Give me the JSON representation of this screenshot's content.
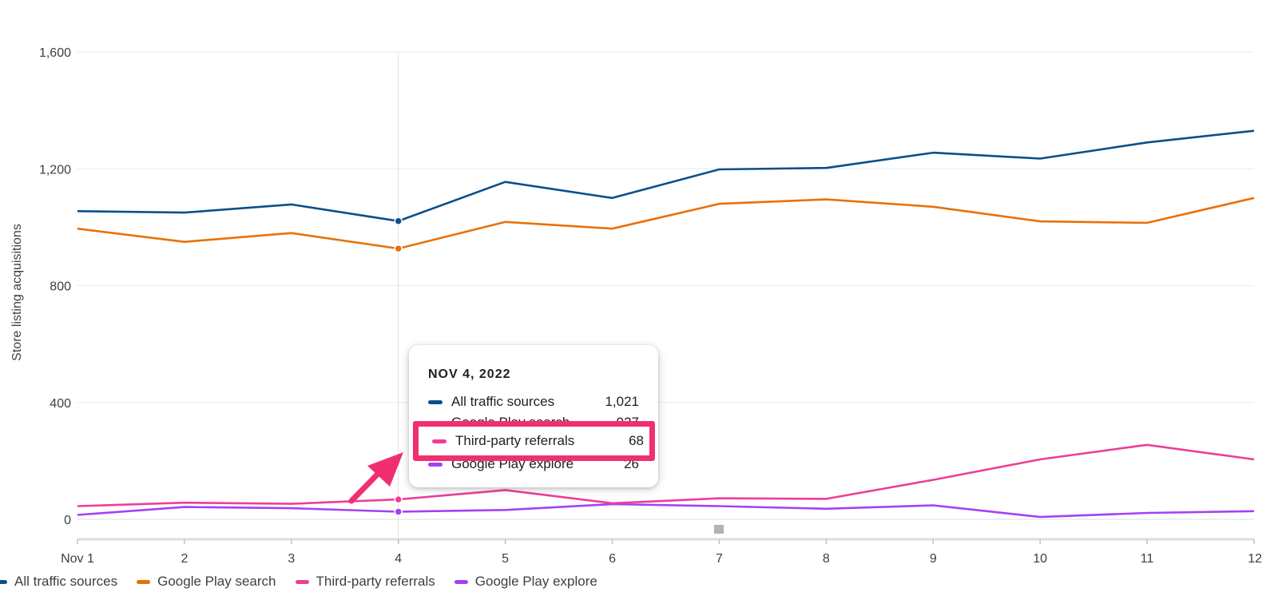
{
  "chart_data": {
    "type": "line",
    "ylabel": "Store listing acquisitions",
    "ylim": [
      0,
      1600
    ],
    "yticks": [
      0,
      400,
      800,
      1200,
      1600
    ],
    "ytick_labels": [
      "0",
      "400",
      "800",
      "1,200",
      "1,600"
    ],
    "categories": [
      "Nov 1",
      "2",
      "3",
      "4",
      "5",
      "6",
      "7",
      "8",
      "9",
      "10",
      "11",
      "12"
    ],
    "grid": "horizontal",
    "legend_position": "bottom-left",
    "series": [
      {
        "name": "All traffic sources",
        "color": "#0b4f8a",
        "values": [
          1055,
          1050,
          1078,
          1021,
          1155,
          1100,
          1198,
          1203,
          1255,
          1235,
          1290,
          1330
        ]
      },
      {
        "name": "Google Play search",
        "color": "#e8710a",
        "values": [
          995,
          950,
          980,
          927,
          1018,
          995,
          1080,
          1095,
          1070,
          1020,
          1015,
          1100
        ]
      },
      {
        "name": "Third-party referrals",
        "color": "#ee3e96",
        "values": [
          45,
          57,
          53,
          68,
          100,
          55,
          72,
          70,
          135,
          205,
          255,
          205
        ]
      },
      {
        "name": "Google Play explore",
        "color": "#a142f4",
        "values": [
          15,
          42,
          38,
          26,
          32,
          52,
          45,
          36,
          48,
          8,
          22,
          28
        ]
      }
    ],
    "hover_index": 3,
    "tooltip": {
      "date": "NOV 4, 2022",
      "rows": [
        {
          "label": "All traffic sources",
          "value": "1,021"
        },
        {
          "label": "Google Play search",
          "value": "927"
        },
        {
          "label": "Third-party referrals",
          "value": "68"
        },
        {
          "label": "Google Play explore",
          "value": "26"
        }
      ]
    },
    "annotation": {
      "highlight_color": "#f0306e",
      "highlight_row": "Third-party referrals"
    }
  }
}
